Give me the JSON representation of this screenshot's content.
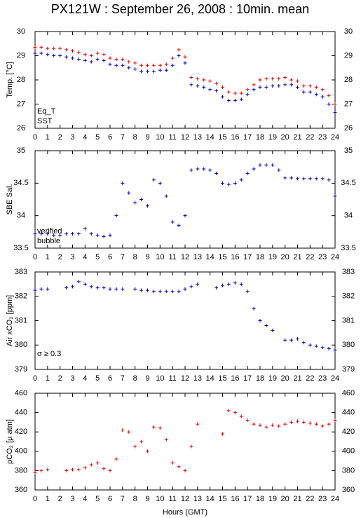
{
  "chart_data": [
    {
      "type": "scatter",
      "title": "PX121W : September 26, 2008 : 10min. mean",
      "ylabel": "Temp. [°C]",
      "xlim": [
        0,
        24
      ],
      "xticks": [
        0,
        1,
        2,
        3,
        4,
        5,
        6,
        7,
        8,
        9,
        10,
        11,
        12,
        13,
        14,
        15,
        16,
        17,
        18,
        19,
        20,
        21,
        22,
        23,
        24
      ],
      "ylim": [
        26,
        30
      ],
      "yticks": [
        26,
        27,
        28,
        29,
        30
      ],
      "x": [
        0,
        0.5,
        1,
        1.5,
        2,
        2.5,
        3,
        3.5,
        4,
        4.5,
        5,
        5.5,
        6,
        6.5,
        7,
        7.5,
        8,
        8.5,
        9,
        9.5,
        10,
        10.5,
        11,
        11.5,
        12,
        12.5,
        13,
        13.5,
        14,
        14.5,
        15,
        15.5,
        16,
        16.5,
        17,
        17.5,
        18,
        18.5,
        19,
        19.5,
        20,
        20.5,
        21,
        21.5,
        22,
        22.5,
        23,
        23.5,
        24
      ],
      "series": [
        {
          "name": "Eq_T",
          "color": "#e00000",
          "values": [
            29.35,
            29.35,
            29.3,
            29.3,
            29.3,
            29.25,
            29.2,
            29.15,
            29.05,
            29.0,
            29.1,
            29.05,
            28.9,
            28.85,
            28.85,
            28.75,
            28.7,
            28.6,
            28.6,
            28.6,
            28.6,
            28.65,
            28.9,
            29.25,
            28.95,
            28.1,
            28.05,
            28.0,
            27.95,
            27.85,
            27.7,
            27.5,
            27.45,
            27.45,
            27.6,
            27.8,
            28.0,
            28.05,
            28.05,
            28.05,
            28.1,
            28.0,
            27.95,
            27.75,
            27.75,
            27.7,
            27.6,
            27.35,
            27.0
          ]
        },
        {
          "name": "SST",
          "color": "#0000c0",
          "values": [
            29.1,
            29.1,
            29.05,
            29.0,
            29.0,
            28.95,
            28.9,
            28.85,
            28.8,
            28.75,
            28.85,
            28.8,
            28.65,
            28.6,
            28.6,
            28.5,
            28.45,
            28.35,
            28.35,
            28.35,
            28.4,
            28.4,
            28.6,
            29.0,
            28.7,
            27.8,
            27.75,
            27.7,
            27.6,
            27.55,
            27.3,
            27.15,
            27.15,
            27.2,
            27.4,
            27.6,
            27.7,
            27.7,
            27.75,
            27.75,
            27.8,
            27.8,
            27.7,
            27.5,
            27.5,
            27.4,
            27.3,
            27.0,
            26.65
          ]
        }
      ]
    },
    {
      "type": "scatter",
      "ylabel": "SBE Sal.",
      "xlim": [
        0,
        24
      ],
      "xticks": [
        0,
        1,
        2,
        3,
        4,
        5,
        6,
        7,
        8,
        9,
        10,
        11,
        12,
        13,
        14,
        15,
        16,
        17,
        18,
        19,
        20,
        21,
        22,
        23,
        24
      ],
      "ylim": [
        33.5,
        35
      ],
      "yticks": [
        33.5,
        34,
        34.5,
        35
      ],
      "x": [
        0,
        0.5,
        1,
        1.5,
        2,
        2.5,
        3,
        3.5,
        4,
        4.5,
        5,
        5.5,
        6,
        6.5,
        7,
        7.5,
        8,
        8.5,
        9,
        9.5,
        10,
        10.5,
        11,
        11.5,
        12,
        12.5,
        13,
        13.5,
        14,
        14.5,
        15,
        15.5,
        16,
        16.5,
        17,
        17.5,
        18,
        18.5,
        19,
        19.5,
        20,
        20.5,
        21,
        21.5,
        22,
        22.5,
        23,
        23.5,
        24
      ],
      "series": [
        {
          "name": "verified",
          "color": "#0000c0",
          "values": [
            33.72,
            33.72,
            33.72,
            33.7,
            33.7,
            33.72,
            33.72,
            33.72,
            33.8,
            33.72,
            33.7,
            33.68,
            33.7,
            34.0,
            34.5,
            34.35,
            34.2,
            34.25,
            34.15,
            34.55,
            34.5,
            34.3,
            33.9,
            33.85,
            34.0,
            34.7,
            34.72,
            34.72,
            34.7,
            34.65,
            34.5,
            34.48,
            34.5,
            34.55,
            34.65,
            34.72,
            34.78,
            34.78,
            34.78,
            34.7,
            34.58,
            34.58,
            34.57,
            34.57,
            34.57,
            34.57,
            34.57,
            34.55,
            34.3
          ]
        },
        {
          "name": "bubble",
          "color": "#c000c0",
          "values": [
            null,
            null,
            null,
            null,
            null,
            null,
            null,
            null,
            null,
            null,
            null,
            null,
            null,
            null,
            null,
            null,
            null,
            null,
            null,
            null,
            null,
            null,
            null,
            null,
            null,
            null,
            null,
            null,
            null,
            null,
            null,
            null,
            null,
            null,
            null,
            null,
            null,
            null,
            null,
            null,
            null,
            null,
            null,
            null,
            null,
            null,
            null,
            null,
            null
          ]
        }
      ]
    },
    {
      "type": "scatter",
      "ylabel": "Air xCO₂ [ppm]",
      "annotation": "σ ≥ 0.3",
      "annotation_color": "#c000c0",
      "xlim": [
        0,
        24
      ],
      "xticks": [
        0,
        1,
        2,
        3,
        4,
        5,
        6,
        7,
        8,
        9,
        10,
        11,
        12,
        13,
        14,
        15,
        16,
        17,
        18,
        19,
        20,
        21,
        22,
        23,
        24
      ],
      "ylim": [
        379,
        383
      ],
      "yticks": [
        379,
        380,
        381,
        382,
        383
      ],
      "x": [
        0,
        0.5,
        1,
        1.5,
        2,
        2.5,
        3,
        3.5,
        4,
        4.5,
        5,
        5.5,
        6,
        6.5,
        7,
        7.5,
        8,
        8.5,
        9,
        9.5,
        10,
        10.5,
        11,
        11.5,
        12,
        12.5,
        13,
        13.5,
        14,
        14.5,
        15,
        15.5,
        16,
        16.5,
        17,
        17.5,
        18,
        18.5,
        19,
        19.5,
        20,
        20.5,
        21,
        21.5,
        22,
        22.5,
        23,
        23.5,
        24
      ],
      "series": [
        {
          "color": "#0000c0",
          "values": [
            382.25,
            382.3,
            382.3,
            null,
            null,
            382.35,
            382.4,
            382.6,
            382.5,
            382.4,
            382.35,
            382.35,
            382.3,
            382.3,
            382.3,
            null,
            382.3,
            382.25,
            382.25,
            382.2,
            382.2,
            382.2,
            382.2,
            382.2,
            382.3,
            382.4,
            382.5,
            null,
            null,
            382.35,
            382.45,
            382.5,
            382.55,
            382.5,
            382.2,
            381.5,
            381.0,
            380.8,
            380.6,
            null,
            380.2,
            380.2,
            380.25,
            380.1,
            380.0,
            379.95,
            379.9,
            379.85,
            379.8
          ]
        }
      ]
    },
    {
      "type": "scatter",
      "ylabel": "ρCO₂ [μ atm]",
      "xlabel": "Hours (GMT)",
      "xlim": [
        0,
        24
      ],
      "xticks": [
        0,
        1,
        2,
        3,
        4,
        5,
        6,
        7,
        8,
        9,
        10,
        11,
        12,
        13,
        14,
        15,
        16,
        17,
        18,
        19,
        20,
        21,
        22,
        23,
        24
      ],
      "ylim": [
        360,
        460
      ],
      "yticks": [
        360,
        380,
        400,
        420,
        440,
        460
      ],
      "x": [
        0,
        0.5,
        1,
        1.5,
        2,
        2.5,
        3,
        3.5,
        4,
        4.5,
        5,
        5.5,
        6,
        6.5,
        7,
        7.5,
        8,
        8.5,
        9,
        9.5,
        10,
        10.5,
        11,
        11.5,
        12,
        12.5,
        13,
        13.5,
        14,
        14.5,
        15,
        15.5,
        16,
        16.5,
        17,
        17.5,
        18,
        18.5,
        19,
        19.5,
        20,
        20.5,
        21,
        21.5,
        22,
        22.5,
        23,
        23.5,
        24
      ],
      "series": [
        {
          "color": "#e00000",
          "values": [
            378,
            380,
            381,
            null,
            null,
            380,
            381,
            381,
            383,
            386,
            388,
            382,
            380,
            392,
            422,
            420,
            405,
            410,
            400,
            425,
            424,
            412,
            388,
            384,
            380,
            405,
            428,
            null,
            null,
            null,
            418,
            442,
            440,
            436,
            432,
            428,
            427,
            425,
            427,
            426,
            428,
            430,
            431,
            430,
            429,
            428,
            426,
            428,
            432
          ]
        }
      ]
    }
  ]
}
